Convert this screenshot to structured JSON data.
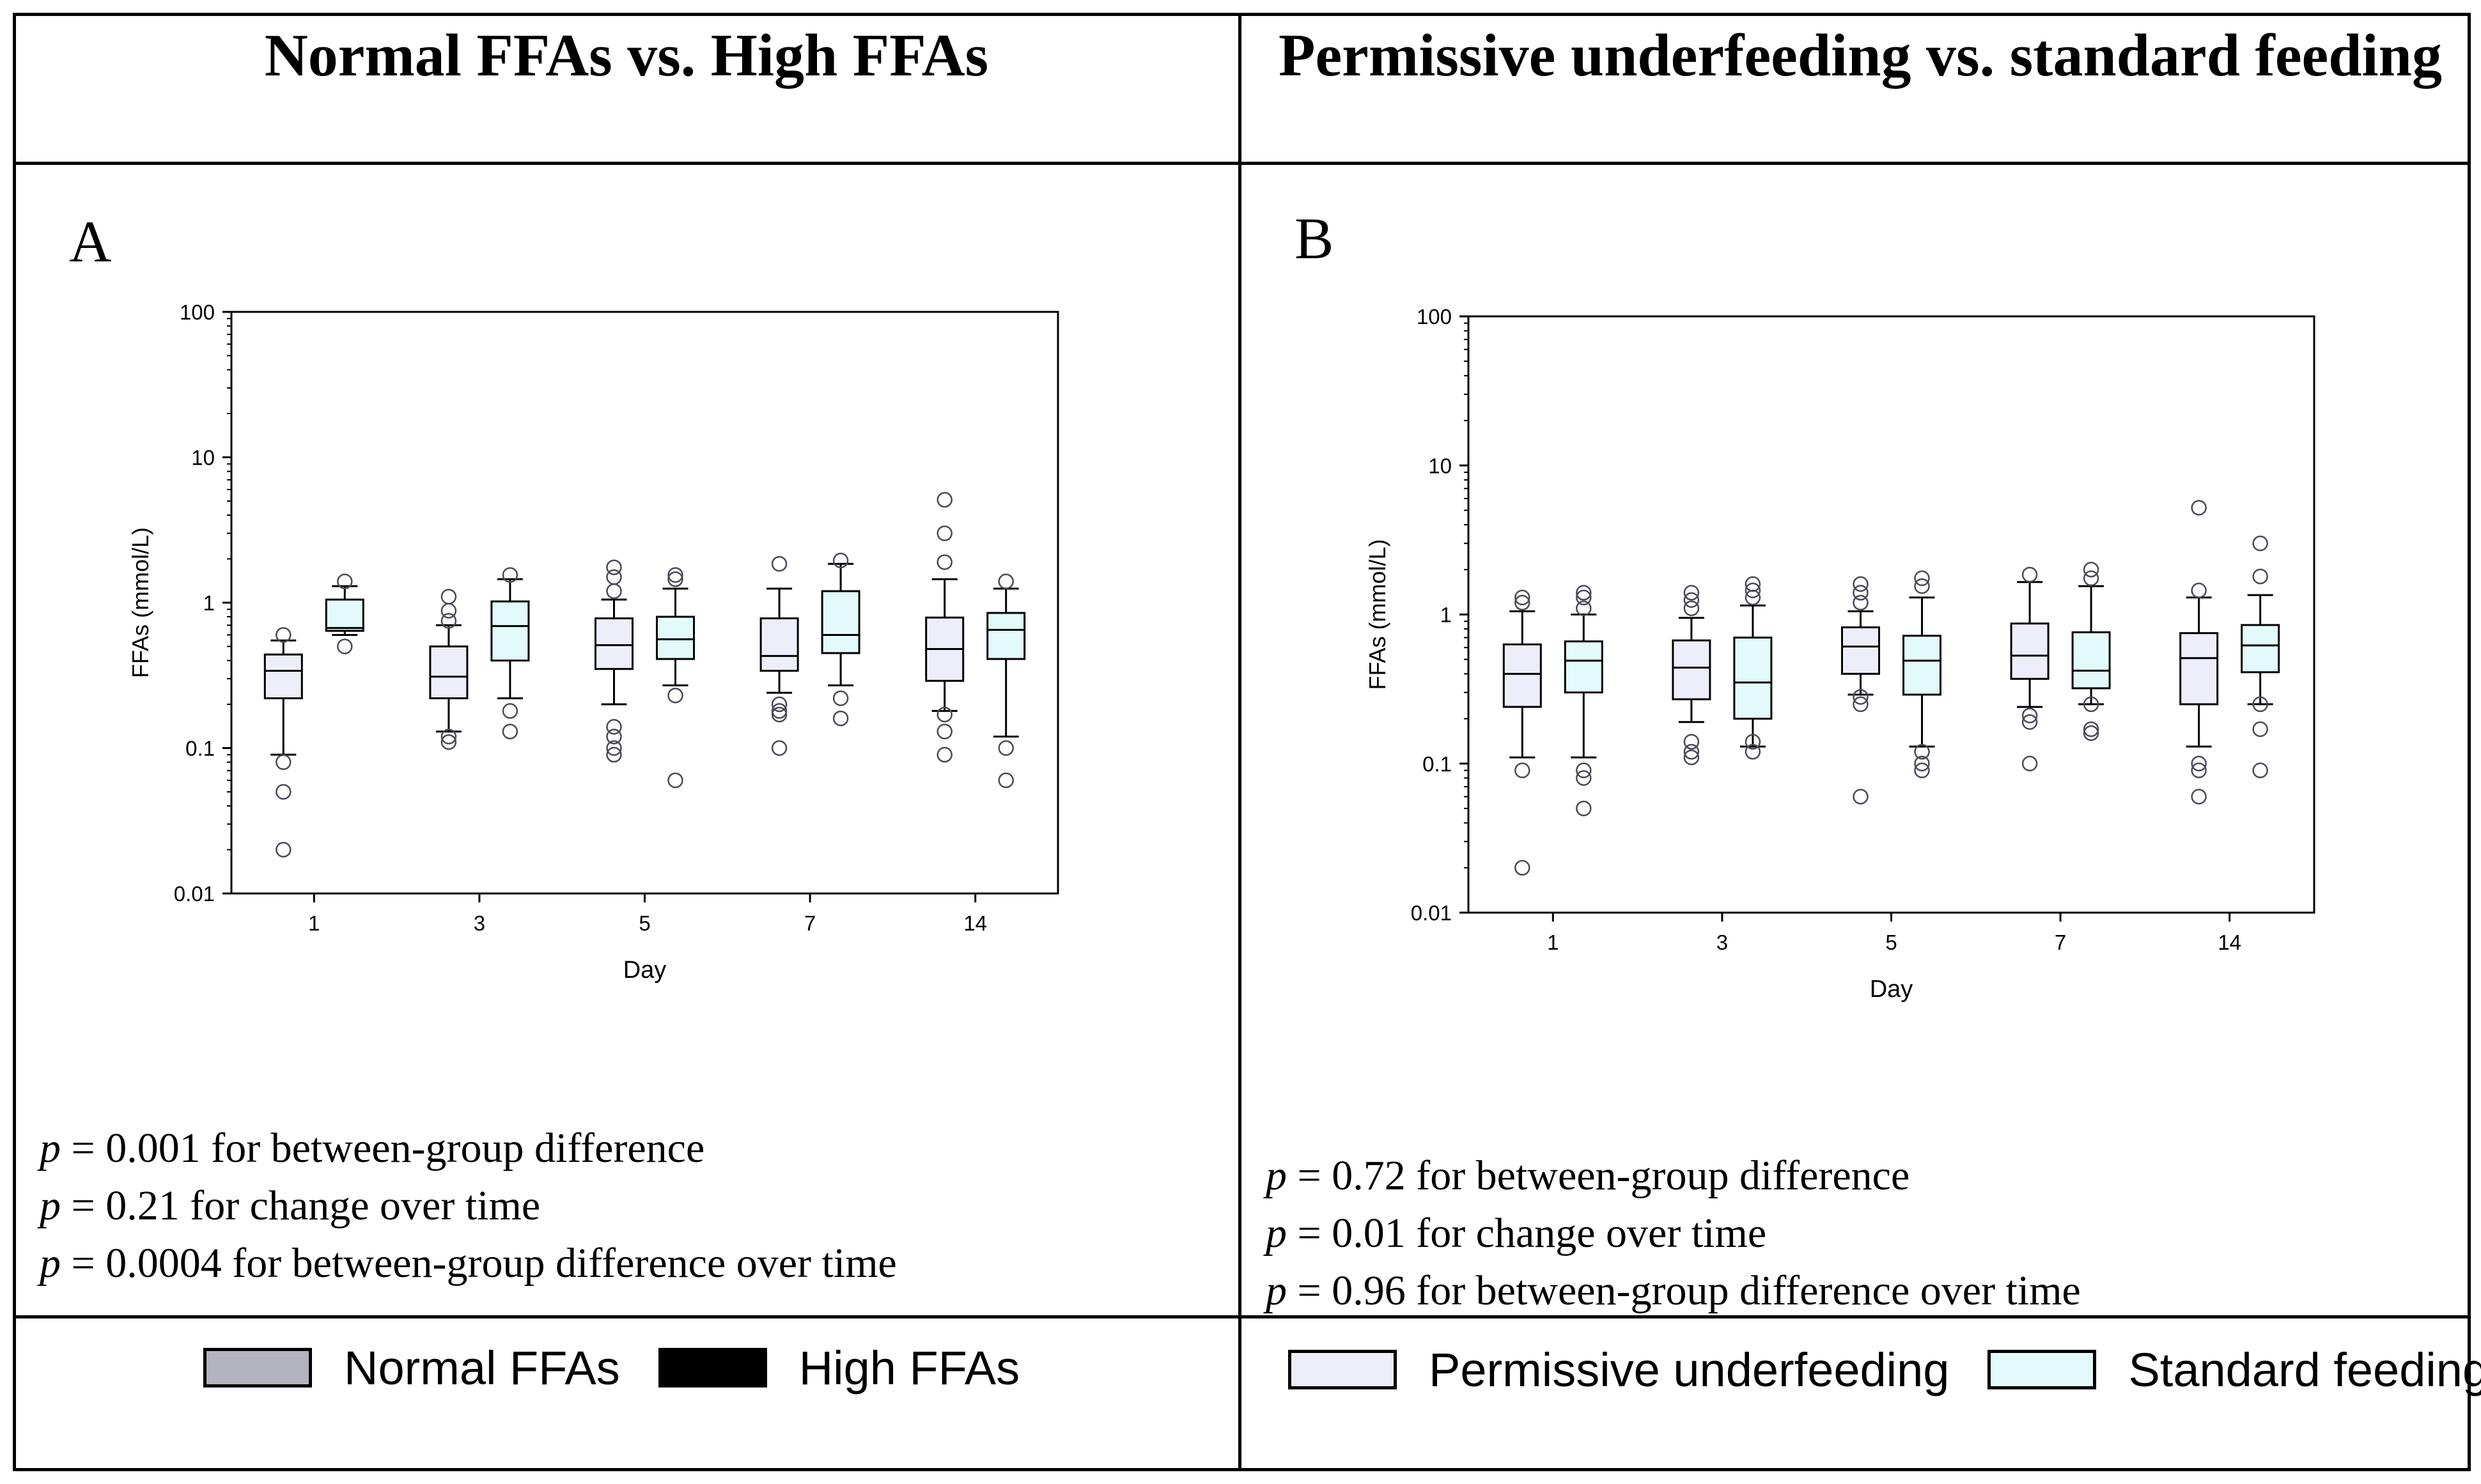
{
  "panels": [
    {
      "title": "Normal FFAs vs. High FFAs",
      "letter": "A",
      "stats": [
        {
          "p": "p",
          "text": " = 0.001 for between-group difference"
        },
        {
          "p": "p",
          "text": " = 0.21 for change over time"
        },
        {
          "p": "p",
          "text": " = 0.0004 for between-group difference over time"
        }
      ],
      "legend": [
        {
          "label": "Normal FFAs",
          "color": "#b4b3c0"
        },
        {
          "label": "High FFAs",
          "color": "#000000"
        }
      ]
    },
    {
      "title": "Permissive underfeeding vs. standard feeding",
      "letter": "B",
      "stats": [
        {
          "p": "p",
          "text": " = 0.72 for between-group difference"
        },
        {
          "p": "p",
          "text": " = 0.01 for change over time"
        },
        {
          "p": "p",
          "text": " = 0.96 for between-group difference over time"
        }
      ],
      "legend": [
        {
          "label": "Permissive underfeeding",
          "color": "#eeeefb"
        },
        {
          "label": "Standard feeding",
          "color": "#e3fafa"
        }
      ]
    }
  ],
  "chart_data": [
    {
      "type": "box",
      "panel": "A",
      "xlabel": "Day",
      "ylabel": "FFAs (mmol/L)",
      "yscale": "log",
      "ylim": [
        0.01,
        100
      ],
      "yticks": [
        "0.01",
        "0.1",
        "1",
        "10",
        "100"
      ],
      "categories": [
        "1",
        "3",
        "5",
        "7",
        "14"
      ],
      "series": [
        {
          "name": "Normal FFAs",
          "fill": "#eeeefb",
          "boxes": [
            {
              "whislo": 0.09,
              "q1": 0.22,
              "med": 0.34,
              "q3": 0.44,
              "whishi": 0.55,
              "fliers": [
                0.6,
                0.08,
                0.05,
                0.02
              ]
            },
            {
              "whislo": 0.13,
              "q1": 0.22,
              "med": 0.31,
              "q3": 0.5,
              "whishi": 0.7,
              "fliers": [
                0.75,
                0.88,
                1.1,
                0.12,
                0.11
              ]
            },
            {
              "whislo": 0.2,
              "q1": 0.35,
              "med": 0.51,
              "q3": 0.78,
              "whishi": 1.05,
              "fliers": [
                1.2,
                1.5,
                1.75,
                0.14,
                0.12,
                0.1,
                0.09
              ]
            },
            {
              "whislo": 0.24,
              "q1": 0.34,
              "med": 0.43,
              "q3": 0.78,
              "whishi": 1.25,
              "fliers": [
                1.85,
                0.2,
                0.18,
                0.17,
                0.1
              ]
            },
            {
              "whislo": 0.18,
              "q1": 0.29,
              "med": 0.48,
              "q3": 0.79,
              "whishi": 1.45,
              "fliers": [
                1.9,
                3.0,
                5.1,
                0.17,
                0.13,
                0.09
              ]
            }
          ]
        },
        {
          "name": "High FFAs",
          "fill": "#e3fafa",
          "boxes": [
            {
              "whislo": 0.6,
              "q1": 0.64,
              "med": 0.67,
              "q3": 1.05,
              "whishi": 1.3,
              "fliers": [
                1.4,
                0.5
              ]
            },
            {
              "whislo": 0.22,
              "q1": 0.4,
              "med": 0.69,
              "q3": 1.02,
              "whishi": 1.45,
              "fliers": [
                1.55,
                0.18,
                0.13
              ]
            },
            {
              "whislo": 0.27,
              "q1": 0.41,
              "med": 0.56,
              "q3": 0.8,
              "whishi": 1.25,
              "fliers": [
                1.45,
                1.55,
                0.23,
                0.06
              ]
            },
            {
              "whislo": 0.27,
              "q1": 0.45,
              "med": 0.6,
              "q3": 1.2,
              "whishi": 1.85,
              "fliers": [
                1.95,
                0.22,
                0.16
              ]
            },
            {
              "whislo": 0.12,
              "q1": 0.41,
              "med": 0.65,
              "q3": 0.85,
              "whishi": 1.25,
              "fliers": [
                1.4,
                0.1,
                0.06
              ]
            }
          ]
        }
      ]
    },
    {
      "type": "box",
      "panel": "B",
      "xlabel": "Day",
      "ylabel": "FFAs (mmol/L)",
      "yscale": "log",
      "ylim": [
        0.01,
        100
      ],
      "yticks": [
        "0.01",
        "0.1",
        "1",
        "10",
        "100"
      ],
      "categories": [
        "1",
        "3",
        "5",
        "7",
        "14"
      ],
      "series": [
        {
          "name": "Permissive underfeeding",
          "fill": "#eeeefb",
          "boxes": [
            {
              "whislo": 0.11,
              "q1": 0.24,
              "med": 0.4,
              "q3": 0.63,
              "whishi": 1.05,
              "fliers": [
                1.2,
                1.3,
                0.09,
                0.02
              ]
            },
            {
              "whislo": 0.19,
              "q1": 0.27,
              "med": 0.44,
              "q3": 0.67,
              "whishi": 0.95,
              "fliers": [
                1.1,
                1.25,
                1.4,
                0.14,
                0.12,
                0.11
              ]
            },
            {
              "whislo": 0.29,
              "q1": 0.4,
              "med": 0.61,
              "q3": 0.82,
              "whishi": 1.05,
              "fliers": [
                1.2,
                1.4,
                1.6,
                0.28,
                0.25,
                0.06
              ]
            },
            {
              "whislo": 0.24,
              "q1": 0.37,
              "med": 0.53,
              "q3": 0.87,
              "whishi": 1.65,
              "fliers": [
                1.85,
                0.21,
                0.19,
                0.1
              ]
            },
            {
              "whislo": 0.13,
              "q1": 0.25,
              "med": 0.51,
              "q3": 0.75,
              "whishi": 1.3,
              "fliers": [
                1.45,
                5.2,
                0.1,
                0.09,
                0.06
              ]
            }
          ]
        },
        {
          "name": "Standard feeding",
          "fill": "#e3fafa",
          "boxes": [
            {
              "whislo": 0.11,
              "q1": 0.3,
              "med": 0.49,
              "q3": 0.66,
              "whishi": 1.0,
              "fliers": [
                1.1,
                1.3,
                1.4,
                0.09,
                0.08,
                0.05
              ]
            },
            {
              "whislo": 0.13,
              "q1": 0.2,
              "med": 0.35,
              "q3": 0.7,
              "whishi": 1.15,
              "fliers": [
                1.3,
                1.45,
                1.6,
                0.14,
                0.12
              ]
            },
            {
              "whislo": 0.13,
              "q1": 0.29,
              "med": 0.49,
              "q3": 0.72,
              "whishi": 1.3,
              "fliers": [
                1.55,
                1.75,
                0.12,
                0.1,
                0.09
              ]
            },
            {
              "whislo": 0.25,
              "q1": 0.32,
              "med": 0.42,
              "q3": 0.76,
              "whishi": 1.55,
              "fliers": [
                1.75,
                2.0,
                0.25,
                0.17,
                0.16
              ]
            },
            {
              "whislo": 0.25,
              "q1": 0.41,
              "med": 0.62,
              "q3": 0.85,
              "whishi": 1.35,
              "fliers": [
                1.8,
                3.0,
                0.25,
                0.17,
                0.09
              ]
            }
          ]
        }
      ]
    }
  ]
}
